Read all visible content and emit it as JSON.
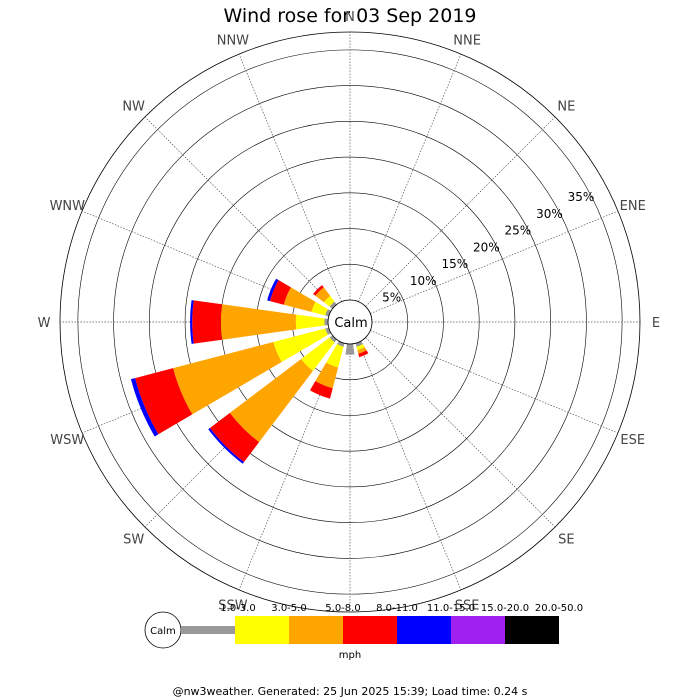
{
  "page": {
    "title": "Wind rose for 03 Sep 2019",
    "footer": "@nw3weather. Generated: 25 Jun 2025 15:39; Load time: 0.24 s"
  },
  "chart_data": {
    "type": "wind-rose",
    "title": "Wind rose for 03 Sep 2019",
    "directions": [
      "N",
      "NNE",
      "NE",
      "ENE",
      "E",
      "ESE",
      "SE",
      "SSE",
      "S",
      "SSW",
      "SW",
      "WSW",
      "W",
      "WNW",
      "NW",
      "NNW"
    ],
    "radial_ticks": [
      "5%",
      "10%",
      "15%",
      "20%",
      "25%",
      "30%",
      "35%"
    ],
    "radial_tick_values": [
      5,
      10,
      15,
      20,
      25,
      30,
      35
    ],
    "rmax": 37.5,
    "calm_label": "Calm",
    "unit": "mph",
    "speed_bins": [
      {
        "label": "1.0-3.0",
        "color": "#999999"
      },
      {
        "label": "3.0-5.0",
        "color": "#ffff00"
      },
      {
        "label": "5.0-8.0",
        "color": "#ffa500"
      },
      {
        "label": "8.0-11.0",
        "color": "#ff0000"
      },
      {
        "label": "11.0-15.0",
        "color": "#0000ff"
      },
      {
        "label": "15.0-20.0",
        "color": "#a020f0"
      },
      {
        "label": "20.0-50.0",
        "color": "#000000"
      }
    ],
    "series": [
      {
        "direction": "SSE",
        "values": [
          0.5,
          0.5,
          0.5,
          0.5,
          0,
          0,
          0
        ]
      },
      {
        "direction": "S",
        "values": [
          1.5,
          0,
          0,
          0,
          0,
          0,
          0
        ]
      },
      {
        "direction": "SSW",
        "values": [
          0.5,
          3.0,
          3.0,
          1.5,
          0,
          0,
          0
        ]
      },
      {
        "direction": "SW",
        "values": [
          0.5,
          5.0,
          12.5,
          3.5,
          0.3,
          0,
          0
        ]
      },
      {
        "direction": "WSW",
        "values": [
          0.5,
          7.5,
          14.5,
          5.5,
          0.6,
          0,
          0
        ]
      },
      {
        "direction": "W",
        "values": [
          0.5,
          4.0,
          10.5,
          4.0,
          0.3,
          0,
          0
        ]
      },
      {
        "direction": "WNW",
        "values": [
          0.5,
          2.0,
          4.0,
          2.0,
          0.4,
          0,
          0
        ]
      },
      {
        "direction": "NW",
        "values": [
          0.5,
          1.0,
          1.5,
          0.4,
          0,
          0,
          0
        ]
      }
    ]
  }
}
